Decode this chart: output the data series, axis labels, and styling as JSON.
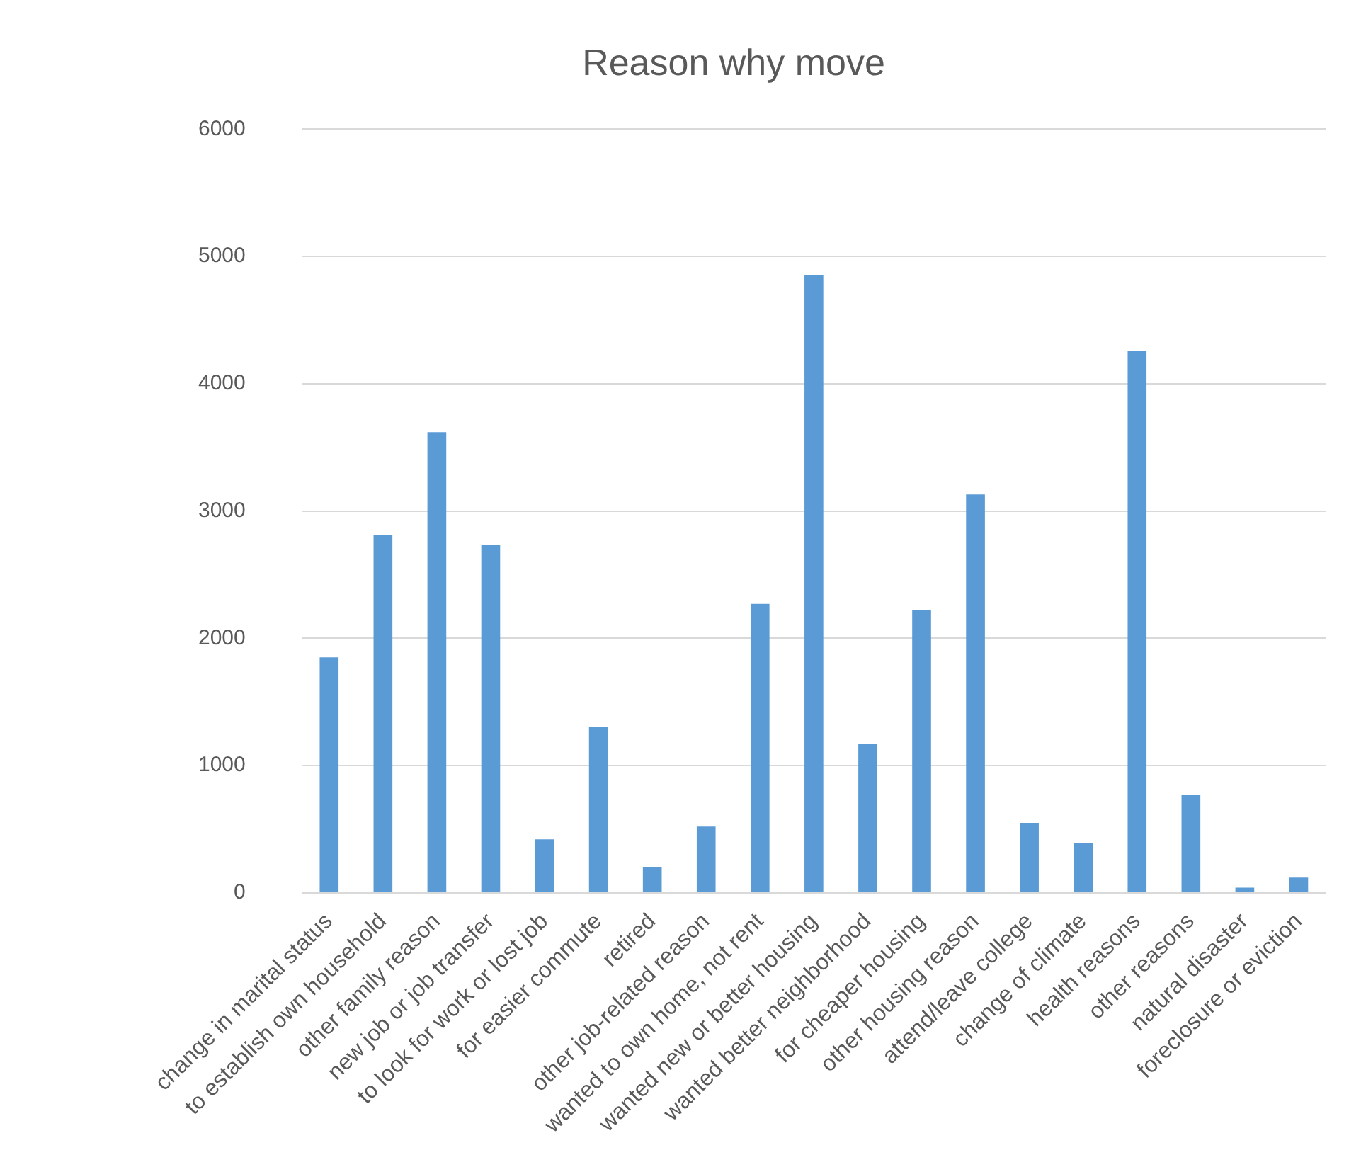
{
  "chart_data": {
    "type": "bar",
    "title": "Reason why move",
    "categories": [
      "change in marital status",
      "to establish own household",
      "other family reason",
      "new job or job transfer",
      "to look for work or lost job",
      "for easier commute",
      "retired",
      "other job-related reason",
      "wanted to own home, not rent",
      "wanted new or better housing",
      "wanted better neighborhood",
      "for cheaper housing",
      "other housing reason",
      "attend/leave college",
      "change of climate",
      "health reasons",
      "other reasons",
      "natural disaster",
      "foreclosure or eviction"
    ],
    "values": [
      1850,
      2810,
      3620,
      2730,
      420,
      1300,
      200,
      520,
      2270,
      4850,
      1170,
      2220,
      3130,
      550,
      390,
      4260,
      770,
      40,
      120
    ],
    "color": "#5b9bd5",
    "ylim": [
      0,
      6000
    ],
    "yticks": [
      0,
      1000,
      2000,
      3000,
      4000,
      5000,
      6000
    ],
    "grid": "y",
    "legend": false
  }
}
